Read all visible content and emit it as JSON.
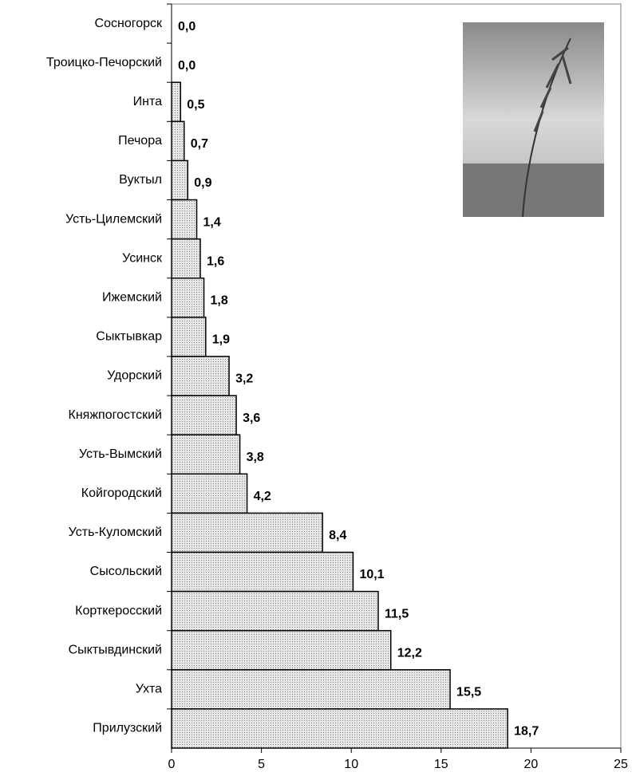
{
  "chart_data": {
    "type": "barh",
    "categories": [
      "Сосногорск",
      "Троицко-Печорский",
      "Инта",
      "Печора",
      "Вуктыл",
      "Усть-Цилемский",
      "Усинск",
      "Ижемский",
      "Сыктывкар",
      "Удорский",
      "Княжпогостский",
      "Усть-Вымский",
      "Койгородский",
      "Усть-Куломский",
      "Сысольский",
      "Корткеросский",
      "Сыктывдинский",
      "Ухта",
      "Прилузский"
    ],
    "values": [
      0.0,
      0.0,
      0.5,
      0.7,
      0.9,
      1.4,
      1.6,
      1.8,
      1.9,
      3.2,
      3.6,
      3.8,
      4.2,
      8.4,
      10.1,
      11.5,
      12.2,
      15.5,
      18.7
    ],
    "value_labels": [
      "0,0",
      "0,0",
      "0,5",
      "0,7",
      "0,9",
      "1,4",
      "1,6",
      "1,8",
      "1,9",
      "3,2",
      "3,6",
      "3,8",
      "4,2",
      "8,4",
      "10,1",
      "11,5",
      "12,2",
      "15,5",
      "18,7"
    ],
    "color": "#d4d4d4",
    "xlim": [
      0,
      25
    ],
    "xticks": [
      0,
      5,
      10,
      15,
      20,
      25
    ]
  }
}
